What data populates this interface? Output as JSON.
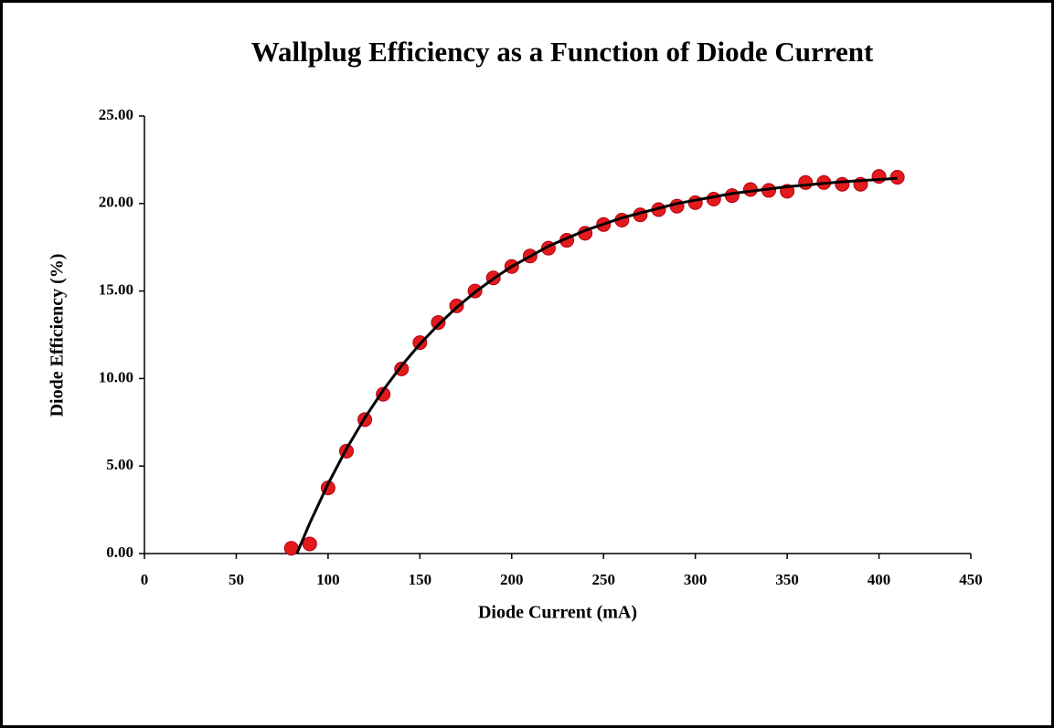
{
  "chart_data": {
    "type": "scatter",
    "title": "Wallplug Efficiency as a Function of Diode Current",
    "xlabel": "Diode Current (mA)",
    "ylabel": "Diode Efficiency (%)",
    "xlim": [
      0,
      450
    ],
    "xticks": [
      0,
      50,
      100,
      150,
      200,
      250,
      300,
      350,
      400,
      450
    ],
    "ylim": [
      0,
      25
    ],
    "yticks": [
      {
        "value": 0,
        "label": "0.00"
      },
      {
        "value": 5,
        "label": "5.00"
      },
      {
        "value": 10,
        "label": "10.00"
      },
      {
        "value": 15,
        "label": "15.00"
      },
      {
        "value": 20,
        "label": "20.00"
      },
      {
        "value": 25,
        "label": "25.00"
      }
    ],
    "grid": false,
    "series": [
      {
        "color": "#e31a1c",
        "marker": "circle",
        "x": [
          80,
          90,
          100,
          110,
          120,
          130,
          140,
          150,
          160,
          170,
          180,
          190,
          200,
          210,
          220,
          230,
          240,
          250,
          260,
          270,
          280,
          290,
          300,
          310,
          320,
          330,
          340,
          350,
          360,
          370,
          380,
          390,
          400,
          410
        ],
        "values": [
          0.3,
          0.55,
          3.75,
          5.85,
          7.65,
          9.1,
          10.55,
          12.05,
          13.2,
          14.15,
          15.0,
          15.75,
          16.4,
          17.0,
          17.45,
          17.9,
          18.3,
          18.8,
          19.05,
          19.35,
          19.65,
          19.85,
          20.05,
          20.25,
          20.45,
          20.8,
          20.75,
          20.7,
          21.2,
          21.2,
          21.1,
          21.1,
          21.55,
          21.5
        ]
      },
      {
        "color": "#000000",
        "marker": "none",
        "x": [
          83,
          90,
          100,
          110,
          120,
          130,
          140,
          150,
          160,
          170,
          180,
          190,
          200,
          220,
          240,
          260,
          290,
          320,
          350,
          380,
          410
        ],
        "values": [
          0,
          1.73,
          3.98,
          5.98,
          7.75,
          9.33,
          10.73,
          11.97,
          13.07,
          14.06,
          14.93,
          15.7,
          16.4,
          17.56,
          18.46,
          19.18,
          20.0,
          20.57,
          20.96,
          21.24,
          21.44
        ]
      }
    ]
  }
}
